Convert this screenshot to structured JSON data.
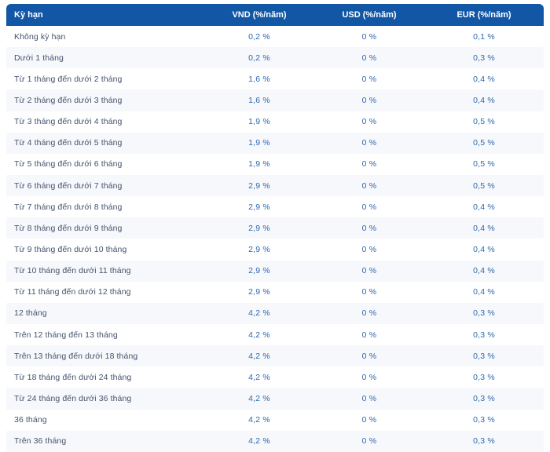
{
  "colors": {
    "header_bg": "#1157a6",
    "header_text": "#ffffff",
    "term_text": "#44536b",
    "value_text": "#2e67ae",
    "stripe_bg": "#f7f8fc",
    "row_bg": "#ffffff"
  },
  "table": {
    "columns": [
      {
        "key": "term",
        "label": "Kỳ hạn"
      },
      {
        "key": "vnd",
        "label": "VND (%/năm)"
      },
      {
        "key": "usd",
        "label": "USD (%/năm)"
      },
      {
        "key": "eur",
        "label": "EUR (%/năm)"
      }
    ],
    "rows": [
      {
        "term": "Không kỳ hạn",
        "vnd": "0,2 %",
        "usd": "0 %",
        "eur": "0,1 %"
      },
      {
        "term": "Dưới 1 tháng",
        "vnd": "0,2 %",
        "usd": "0 %",
        "eur": "0,3 %"
      },
      {
        "term": "Từ 1 tháng đến dưới 2 tháng",
        "vnd": "1,6 %",
        "usd": "0 %",
        "eur": "0,4 %"
      },
      {
        "term": "Từ 2 tháng đến dưới 3 tháng",
        "vnd": "1,6 %",
        "usd": "0 %",
        "eur": "0,4 %"
      },
      {
        "term": "Từ 3 tháng đến dưới 4 tháng",
        "vnd": "1,9 %",
        "usd": "0 %",
        "eur": "0,5 %"
      },
      {
        "term": "Từ 4 tháng đến dưới 5 tháng",
        "vnd": "1,9 %",
        "usd": "0 %",
        "eur": "0,5 %"
      },
      {
        "term": "Từ 5 tháng đến dưới 6 tháng",
        "vnd": "1,9 %",
        "usd": "0 %",
        "eur": "0,5 %"
      },
      {
        "term": "Từ 6 tháng đến dưới 7 tháng",
        "vnd": "2,9 %",
        "usd": "0 %",
        "eur": "0,5 %"
      },
      {
        "term": "Từ 7 tháng đến dưới 8 tháng",
        "vnd": "2,9 %",
        "usd": "0 %",
        "eur": "0,4 %"
      },
      {
        "term": "Từ 8 tháng đến dưới 9 tháng",
        "vnd": "2,9 %",
        "usd": "0 %",
        "eur": "0,4 %"
      },
      {
        "term": "Từ 9 tháng đến dưới 10 tháng",
        "vnd": "2,9 %",
        "usd": "0 %",
        "eur": "0,4 %"
      },
      {
        "term": "Từ 10 tháng đến dưới 11 tháng",
        "vnd": "2,9 %",
        "usd": "0 %",
        "eur": "0,4 %"
      },
      {
        "term": "Từ 11 tháng đến dưới 12 tháng",
        "vnd": "2,9 %",
        "usd": "0 %",
        "eur": "0,4 %"
      },
      {
        "term": "12 tháng",
        "vnd": "4,2 %",
        "usd": "0 %",
        "eur": "0,3 %"
      },
      {
        "term": "Trên 12 tháng đến 13 tháng",
        "vnd": "4,2 %",
        "usd": "0 %",
        "eur": "0,3 %"
      },
      {
        "term": "Trên 13 tháng đến dưới 18 tháng",
        "vnd": "4,2 %",
        "usd": "0 %",
        "eur": "0,3 %"
      },
      {
        "term": "Từ 18 tháng đến dưới 24 tháng",
        "vnd": "4,2 %",
        "usd": "0 %",
        "eur": "0,3 %"
      },
      {
        "term": "Từ 24 tháng đến dưới 36 tháng",
        "vnd": "4,2 %",
        "usd": "0 %",
        "eur": "0,3 %"
      },
      {
        "term": "36 tháng",
        "vnd": "4,2 %",
        "usd": "0 %",
        "eur": "0,3 %"
      },
      {
        "term": "Trên 36 tháng",
        "vnd": "4,2 %",
        "usd": "0 %",
        "eur": "0,3 %"
      }
    ]
  }
}
